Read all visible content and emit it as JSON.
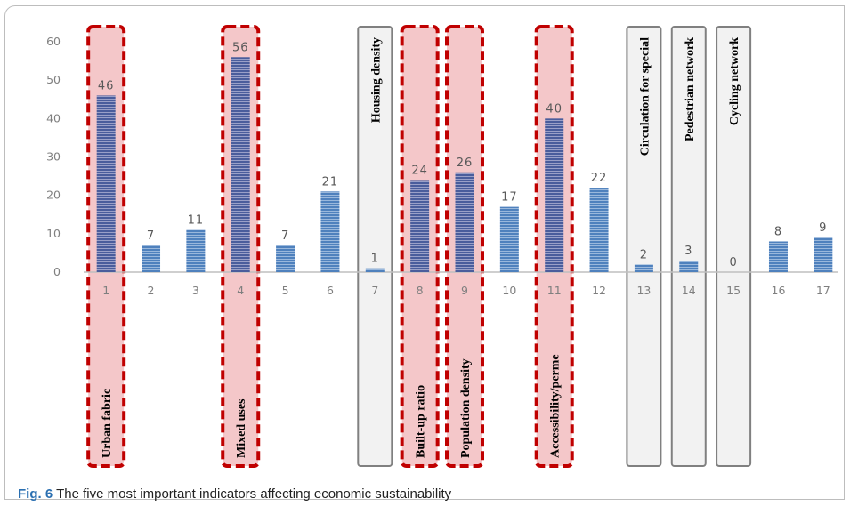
{
  "caption": {
    "label": "Fig. 6",
    "text": "The five most important indicators affecting economic sustainability"
  },
  "chart_data": {
    "type": "bar",
    "categories": [
      "1",
      "2",
      "3",
      "4",
      "5",
      "6",
      "7",
      "8",
      "9",
      "10",
      "11",
      "12",
      "13",
      "14",
      "15",
      "16",
      "17"
    ],
    "values": [
      46,
      7,
      11,
      56,
      7,
      21,
      1,
      24,
      26,
      17,
      40,
      22,
      2,
      3,
      0,
      8,
      9
    ],
    "ylim": [
      0,
      60
    ],
    "yticks": [
      0,
      10,
      20,
      30,
      40,
      50,
      60
    ],
    "xlabel": "",
    "ylabel": "",
    "grid": false,
    "bar_color": "#4f81bd",
    "highlight_color": "#f4c7c9",
    "highlight_border_color": "#c00000",
    "plain_box_border_color": "#808080",
    "annotations": [
      {
        "category": "1",
        "label": "Urban fabric",
        "style": "highlight"
      },
      {
        "category": "4",
        "label": "Mixed uses",
        "style": "highlight"
      },
      {
        "category": "7",
        "label": "Housing density",
        "style": "plain"
      },
      {
        "category": "8",
        "label": "Built-up ratio",
        "style": "highlight"
      },
      {
        "category": "9",
        "label": "Population density",
        "style": "highlight"
      },
      {
        "category": "11",
        "label": "Accessibility/perme",
        "style": "highlight"
      },
      {
        "category": "13",
        "label": "Circulation for special",
        "style": "plain"
      },
      {
        "category": "14",
        "label": "Pedestrian network",
        "style": "plain"
      },
      {
        "category": "15",
        "label": "Cycling network",
        "style": "plain"
      }
    ]
  }
}
